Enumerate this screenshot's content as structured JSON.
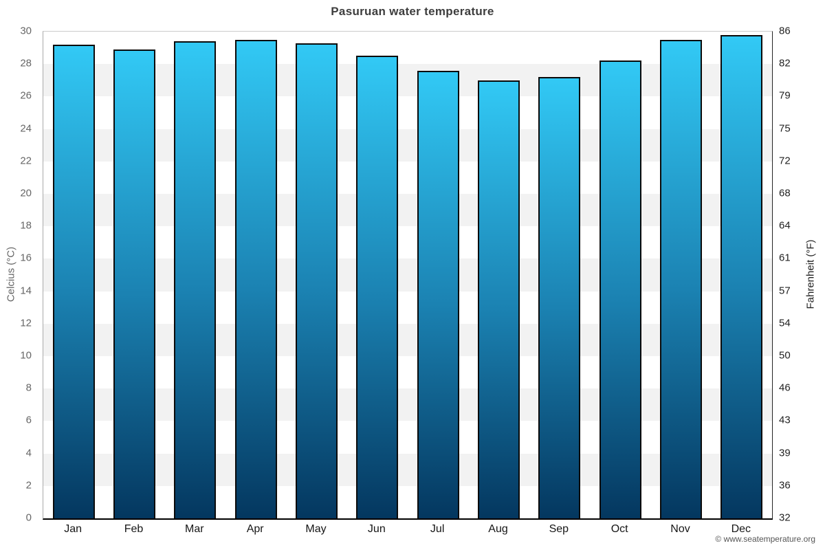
{
  "title": "Pasuruan water temperature",
  "chart_data": {
    "type": "bar",
    "title": "Pasuruan water temperature",
    "categories": [
      "Jan",
      "Feb",
      "Mar",
      "Apr",
      "May",
      "Jun",
      "Jul",
      "Aug",
      "Sep",
      "Oct",
      "Nov",
      "Dec"
    ],
    "values": [
      29.2,
      28.9,
      29.4,
      29.5,
      29.3,
      28.5,
      27.6,
      27.0,
      27.2,
      28.2,
      29.5,
      29.8
    ],
    "series_unit": "°C",
    "ylim": [
      0,
      30
    ],
    "celsius_ticks": [
      30,
      28,
      26,
      24,
      22,
      20,
      18,
      16,
      14,
      12,
      10,
      8,
      6,
      4,
      2,
      0
    ],
    "fahrenheit_ticks": [
      86,
      82,
      79,
      75,
      72,
      68,
      64,
      61,
      57,
      54,
      50,
      46,
      43,
      39,
      36,
      32
    ],
    "xlabel": "",
    "ylabel_left": "Celcius (°C)",
    "ylabel_right": "Fahrenheit (°F)",
    "legend": "none",
    "grid": "alternating horizontal bands every 2°C",
    "colors": {
      "band_light": "#ffffff",
      "band_dark": "#f2f2f2",
      "bar_gradient_top": "#32c9f5",
      "bar_gradient_mid": "#1b82b2",
      "bar_gradient_bottom": "#04375f",
      "bar_border": "#0a0a0a",
      "title_text": "#3d3d3d",
      "left_tick_text": "#666666",
      "right_tick_text": "#222222",
      "month_text": "#151515"
    }
  },
  "footer": {
    "copyright": "© www.seatemperature.org"
  }
}
